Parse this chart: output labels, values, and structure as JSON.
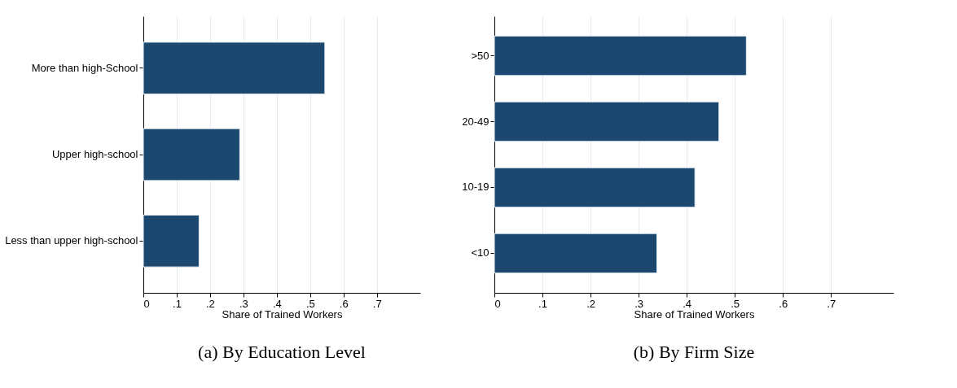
{
  "chart_data": [
    {
      "type": "bar",
      "orientation": "horizontal",
      "title": "(a) By Education Level",
      "xlabel": "Share of Trained Workers",
      "categories": [
        "More than high-School",
        "Upper high-school",
        "Less than upper high-school"
      ],
      "values": [
        0.544,
        0.289,
        0.167
      ],
      "color": "#1c4870",
      "xlim": [
        0,
        0.83
      ],
      "xticks": [
        0,
        {
          "value": 0.1,
          "label": ".1"
        },
        {
          "value": 0.2,
          "label": ".2"
        },
        {
          "value": 0.3,
          "label": ".3"
        },
        {
          "value": 0.4,
          "label": ".4"
        },
        {
          "value": 0.5,
          "label": ".5"
        },
        {
          "value": 0.6,
          "label": ".6"
        },
        {
          "value": 0.7,
          "label": ".7"
        }
      ],
      "grid": "x"
    },
    {
      "type": "bar",
      "orientation": "horizontal",
      "title": "(b) By Firm Size",
      "xlabel": "Share of Trained Workers",
      "categories": [
        ">50",
        "20-49",
        "10-19",
        "<10"
      ],
      "values": [
        0.524,
        0.467,
        0.417,
        0.338
      ],
      "color": "#1c4870",
      "xlim": [
        0,
        0.83
      ],
      "xticks": [
        0,
        {
          "value": 0.1,
          "label": ".1"
        },
        {
          "value": 0.2,
          "label": ".2"
        },
        {
          "value": 0.3,
          "label": ".3"
        },
        {
          "value": 0.4,
          "label": ".4"
        },
        {
          "value": 0.5,
          "label": ".5"
        },
        {
          "value": 0.6,
          "label": ".6"
        },
        {
          "value": 0.7,
          "label": ".7"
        }
      ],
      "grid": "x"
    }
  ]
}
